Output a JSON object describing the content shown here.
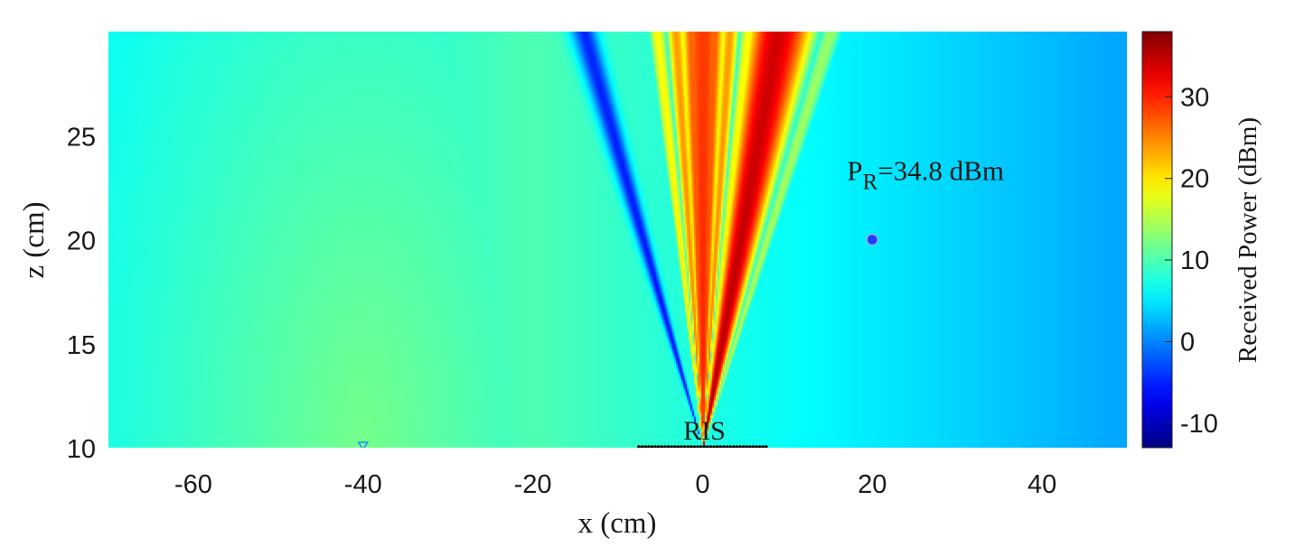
{
  "chart_data": {
    "type": "heatmap",
    "title": "",
    "xlabel": "x (cm)",
    "ylabel": "z (cm)",
    "xlim": [
      -70,
      50
    ],
    "ylim": [
      10,
      30
    ],
    "x_ticks": [
      {
        "value": -60,
        "label": "-60"
      },
      {
        "value": -40,
        "label": "-40"
      },
      {
        "value": -20,
        "label": "-20"
      },
      {
        "value": 0,
        "label": "0"
      },
      {
        "value": 20,
        "label": "20"
      },
      {
        "value": 40,
        "label": "40"
      }
    ],
    "y_ticks": [
      {
        "value": 10,
        "label": "10"
      },
      {
        "value": 15,
        "label": "15"
      },
      {
        "value": 20,
        "label": "20"
      },
      {
        "value": 25,
        "label": "25"
      }
    ],
    "colorbar": {
      "label": "Received Power (dBm)",
      "range": [
        -13,
        38
      ],
      "colormap": "jet",
      "ticks": [
        {
          "value": -10,
          "label": "-10"
        },
        {
          "value": 0,
          "label": "0"
        },
        {
          "value": 10,
          "label": "10"
        },
        {
          "value": 20,
          "label": "20"
        },
        {
          "value": 30,
          "label": "30"
        }
      ]
    },
    "receiver": {
      "x": 20,
      "z": 20,
      "color": "#2040ff",
      "label": {
        "prefix": "P",
        "subscript": "R",
        "suffix": "=34.8 dBm"
      }
    },
    "transmitter": {
      "x": -40,
      "z": 10,
      "color": "#1e90ff"
    },
    "ris": {
      "label": "RIS",
      "x_start": -7.5,
      "x_end": 7.5,
      "z": 10,
      "elements": 40
    },
    "beams": [
      {
        "direction_deg": 0,
        "strength_dbm": 31
      },
      {
        "direction_deg": 4,
        "strength_dbm": 29
      },
      {
        "direction_deg": -4,
        "strength_dbm": 29
      },
      {
        "direction_deg": 9,
        "strength_dbm": 26
      },
      {
        "direction_deg": -9,
        "strength_dbm": 26
      },
      {
        "direction_deg": 15,
        "strength_dbm": 21
      },
      {
        "direction_deg": -15,
        "strength_dbm": 21
      },
      {
        "direction_deg": 24,
        "strength_dbm": 36
      },
      {
        "direction_deg": 37,
        "strength_dbm": 16
      },
      {
        "direction_deg": -35,
        "strength_dbm": -6
      }
    ]
  }
}
